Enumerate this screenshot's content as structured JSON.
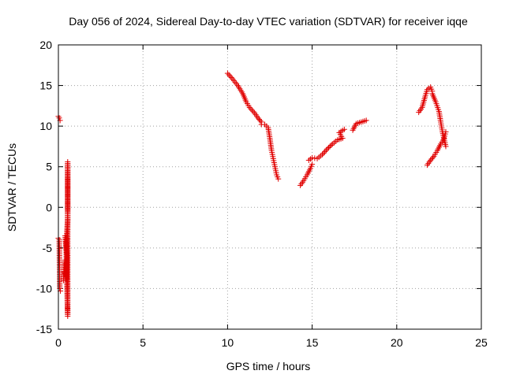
{
  "chart_data": {
    "type": "scatter",
    "title": "Day 056 of 2024, Sidereal Day-to-day VTEC variation (SDTVAR) for receiver iqqe",
    "xlabel": "GPS time / hours",
    "ylabel": "SDTVAR / TECUs",
    "xlim": [
      0,
      25
    ],
    "ylim": [
      -15,
      20
    ],
    "xticks": [
      0,
      5,
      10,
      15,
      20,
      25
    ],
    "yticks": [
      -15,
      -10,
      -5,
      0,
      5,
      10,
      15,
      20
    ],
    "grid": true,
    "marker": "+",
    "color": "#e00000",
    "segments": [
      [
        [
          0.0,
          11.2
        ],
        [
          0.05,
          11.0
        ],
        [
          0.1,
          10.7
        ]
      ],
      [
        [
          0.0,
          -3.8
        ],
        [
          0.05,
          -4.0
        ],
        [
          0.08,
          -10.0
        ],
        [
          0.12,
          -10.3
        ]
      ],
      [
        [
          0.3,
          -9.0
        ],
        [
          0.35,
          -7.0
        ],
        [
          0.4,
          -6.5
        ],
        [
          0.45,
          -8.5
        ],
        [
          0.5,
          -7.8
        ],
        [
          0.5,
          -5.0
        ],
        [
          0.5,
          -3.0
        ],
        [
          0.55,
          -1.5
        ],
        [
          0.55,
          -0.3
        ],
        [
          0.55,
          1.2
        ],
        [
          0.55,
          3.6
        ],
        [
          0.55,
          5.6
        ],
        [
          0.55,
          -11.7
        ],
        [
          0.55,
          -13.4
        ],
        [
          0.45,
          -4.5
        ],
        [
          0.4,
          -3.5
        ],
        [
          0.5,
          -6.0
        ],
        [
          0.5,
          -8.8
        ],
        [
          0.35,
          -8.0
        ]
      ],
      [
        [
          10.0,
          16.5
        ],
        [
          10.3,
          15.8
        ],
        [
          10.6,
          15.0
        ],
        [
          10.9,
          14.0
        ],
        [
          11.1,
          13.0
        ],
        [
          11.3,
          12.3
        ],
        [
          11.6,
          11.6
        ],
        [
          11.8,
          11.0
        ],
        [
          12.0,
          10.5
        ]
      ],
      [
        [
          12.0,
          10.2
        ],
        [
          12.2,
          10.2
        ],
        [
          12.4,
          9.8
        ],
        [
          12.5,
          8.5
        ],
        [
          12.6,
          7.0
        ],
        [
          12.7,
          6.0
        ],
        [
          12.8,
          5.0
        ],
        [
          12.9,
          4.0
        ],
        [
          13.0,
          3.5
        ]
      ],
      [
        [
          14.3,
          2.7
        ],
        [
          14.5,
          3.3
        ],
        [
          14.7,
          4.0
        ],
        [
          14.9,
          4.8
        ],
        [
          15.0,
          5.3
        ]
      ],
      [
        [
          14.8,
          5.8
        ],
        [
          15.0,
          6.1
        ],
        [
          15.3,
          6.0
        ],
        [
          15.6,
          6.5
        ],
        [
          15.9,
          7.2
        ],
        [
          16.2,
          7.8
        ],
        [
          16.5,
          8.3
        ],
        [
          16.8,
          8.5
        ],
        [
          16.6,
          9.2
        ],
        [
          16.9,
          9.6
        ]
      ],
      [
        [
          17.4,
          9.5
        ],
        [
          17.6,
          10.3
        ],
        [
          17.9,
          10.5
        ],
        [
          18.2,
          10.7
        ]
      ],
      [
        [
          21.3,
          11.7
        ],
        [
          21.5,
          12.3
        ],
        [
          21.7,
          13.8
        ],
        [
          21.8,
          14.5
        ],
        [
          22.0,
          14.8
        ],
        [
          22.1,
          14.3
        ]
      ],
      [
        [
          22.1,
          14.0
        ],
        [
          22.3,
          13.0
        ],
        [
          22.5,
          11.8
        ],
        [
          22.6,
          10.5
        ],
        [
          22.7,
          9.3
        ],
        [
          22.8,
          8.4
        ],
        [
          22.9,
          7.5
        ]
      ],
      [
        [
          21.8,
          5.2
        ],
        [
          22.0,
          5.8
        ],
        [
          22.2,
          6.3
        ],
        [
          22.4,
          7.0
        ],
        [
          22.6,
          7.8
        ],
        [
          22.8,
          8.5
        ],
        [
          22.9,
          9.3
        ]
      ]
    ]
  }
}
